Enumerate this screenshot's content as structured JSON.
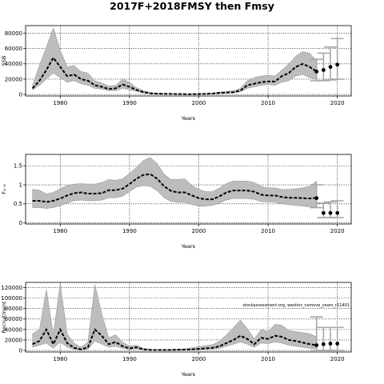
{
  "title": "2017F+2018FMSY then Fmsy",
  "chart_data": [
    {
      "type": "line",
      "xlabel": "Years",
      "ylabel": "SSB",
      "xlim": [
        1975,
        2022
      ],
      "ylim": [
        -2000,
        90000
      ],
      "xticks": [
        1980,
        1990,
        2000,
        2010,
        2020
      ],
      "yticks": [
        0,
        20000,
        40000,
        60000,
        80000
      ],
      "grid": true,
      "series": [
        {
          "role": "estimate",
          "x": [
            1976,
            1977,
            1978,
            1979,
            1980,
            1981,
            1982,
            1983,
            1984,
            1985,
            1986,
            1987,
            1988,
            1989,
            1990,
            1991,
            1992,
            1993,
            1994,
            1995,
            1996,
            1997,
            1998,
            1999,
            2000,
            2001,
            2002,
            2003,
            2004,
            2005,
            2006,
            2007,
            2008,
            2009,
            2010,
            2011,
            2012,
            2013,
            2014,
            2015,
            2016,
            2017
          ],
          "median": [
            8000,
            18000,
            32000,
            48000,
            36000,
            24000,
            26000,
            20000,
            18000,
            12000,
            10000,
            7000,
            8000,
            13000,
            10000,
            6000,
            3000,
            1500,
            1000,
            800,
            700,
            500,
            400,
            400,
            500,
            800,
            1200,
            2000,
            2500,
            3000,
            5000,
            12000,
            14000,
            16000,
            17000,
            17000,
            24000,
            28000,
            36000,
            40000,
            36000,
            30000
          ],
          "low": [
            6000,
            12000,
            20000,
            28000,
            22000,
            16000,
            18000,
            14000,
            12000,
            8000,
            7000,
            5000,
            5000,
            8000,
            6000,
            4000,
            2000,
            1000,
            700,
            500,
            400,
            300,
            300,
            300,
            300,
            500,
            800,
            1300,
            1800,
            2000,
            3500,
            8000,
            10000,
            12000,
            13000,
            12000,
            16000,
            18000,
            24000,
            26000,
            22000,
            20000
          ],
          "high": [
            12000,
            38000,
            62000,
            87000,
            58000,
            36000,
            38000,
            30000,
            28000,
            18000,
            15000,
            11000,
            12000,
            20000,
            16000,
            9000,
            5000,
            2500,
            1600,
            1300,
            1100,
            800,
            700,
            700,
            900,
            1300,
            2000,
            3200,
            4000,
            4800,
            8000,
            18000,
            22000,
            24000,
            25000,
            24000,
            32000,
            40000,
            50000,
            56000,
            54000,
            44000
          ]
        },
        {
          "role": "projection",
          "x": [
            2017,
            2018,
            2019,
            2020
          ],
          "median": [
            30000,
            32000,
            36000,
            39000
          ],
          "low": [
            18000,
            18000,
            19000,
            20000
          ],
          "high": [
            46000,
            54000,
            62000,
            73000
          ]
        }
      ]
    },
    {
      "type": "line",
      "xlabel": "Years",
      "ylabel": "F₄₋₈",
      "xlim": [
        1975,
        2022
      ],
      "ylim": [
        -0.03,
        1.8
      ],
      "xticks": [
        1980,
        1990,
        2000,
        2010,
        2020
      ],
      "yticks": [
        0,
        0.5,
        1,
        1.5
      ],
      "grid": true,
      "series": [
        {
          "role": "estimate",
          "x": [
            1976,
            1977,
            1978,
            1979,
            1980,
            1981,
            1982,
            1983,
            1984,
            1985,
            1986,
            1987,
            1988,
            1989,
            1990,
            1991,
            1992,
            1993,
            1994,
            1995,
            1996,
            1997,
            1998,
            1999,
            2000,
            2001,
            2002,
            2003,
            2004,
            2005,
            2006,
            2007,
            2008,
            2009,
            2010,
            2011,
            2012,
            2013,
            2014,
            2015,
            2016,
            2017
          ],
          "median": [
            0.58,
            0.58,
            0.55,
            0.58,
            0.64,
            0.72,
            0.78,
            0.8,
            0.77,
            0.77,
            0.78,
            0.86,
            0.86,
            0.9,
            1.02,
            1.16,
            1.26,
            1.28,
            1.16,
            0.96,
            0.84,
            0.8,
            0.8,
            0.72,
            0.65,
            0.62,
            0.62,
            0.7,
            0.8,
            0.85,
            0.85,
            0.85,
            0.82,
            0.74,
            0.72,
            0.72,
            0.68,
            0.66,
            0.66,
            0.65,
            0.64,
            0.66
          ],
          "low": [
            0.4,
            0.4,
            0.38,
            0.4,
            0.45,
            0.52,
            0.58,
            0.6,
            0.58,
            0.58,
            0.6,
            0.66,
            0.66,
            0.7,
            0.82,
            0.94,
            0.98,
            0.96,
            0.84,
            0.66,
            0.56,
            0.54,
            0.54,
            0.48,
            0.44,
            0.44,
            0.46,
            0.52,
            0.6,
            0.64,
            0.64,
            0.64,
            0.62,
            0.56,
            0.55,
            0.54,
            0.5,
            0.48,
            0.46,
            0.44,
            0.42,
            0.42
          ],
          "high": [
            0.88,
            0.86,
            0.76,
            0.8,
            0.9,
            0.98,
            1.02,
            1.03,
            1.02,
            1.02,
            1.06,
            1.14,
            1.12,
            1.16,
            1.3,
            1.46,
            1.64,
            1.72,
            1.56,
            1.28,
            1.14,
            1.14,
            1.16,
            0.98,
            0.88,
            0.82,
            0.82,
            0.92,
            1.04,
            1.1,
            1.1,
            1.1,
            1.06,
            0.96,
            0.92,
            0.92,
            0.88,
            0.88,
            0.9,
            0.92,
            0.96,
            1.1
          ]
        },
        {
          "role": "projection",
          "x": [
            2017,
            2018,
            2019,
            2020
          ],
          "median": [
            0.65,
            0.26,
            0.26,
            0.26
          ],
          "low": [
            0.4,
            0.14,
            0.14,
            0.14
          ],
          "high": [
            1.0,
            0.52,
            0.55,
            0.58
          ]
        }
      ]
    },
    {
      "type": "line",
      "xlabel": "Years",
      "ylabel": "Recruitment",
      "xlim": [
        1975,
        2022
      ],
      "ylim": [
        -3000,
        130000
      ],
      "xticks": [
        1980,
        1990,
        2000,
        2010,
        2020
      ],
      "yticks": [
        0,
        20000,
        40000,
        60000,
        80000,
        100000,
        120000
      ],
      "grid": true,
      "annotation": "stockassessment.org, westins_nsmove_years_r11401",
      "series": [
        {
          "role": "estimate",
          "x": [
            1976,
            1977,
            1978,
            1979,
            1980,
            1981,
            1982,
            1983,
            1984,
            1985,
            1986,
            1987,
            1988,
            1989,
            1990,
            1991,
            1992,
            1993,
            1994,
            1995,
            1996,
            1997,
            1998,
            1999,
            2000,
            2001,
            2002,
            2003,
            2004,
            2005,
            2006,
            2007,
            2008,
            2009,
            2010,
            2011,
            2012,
            2013,
            2014,
            2015,
            2016,
            2017
          ],
          "median": [
            12000,
            18000,
            40000,
            12000,
            40000,
            14000,
            5000,
            2000,
            6000,
            40000,
            28000,
            12000,
            16000,
            8000,
            4000,
            6000,
            2000,
            1000,
            800,
            800,
            1000,
            1200,
            1500,
            2000,
            3000,
            4000,
            5000,
            8000,
            14000,
            20000,
            28000,
            22000,
            12000,
            24000,
            22000,
            28000,
            26000,
            20000,
            18000,
            15000,
            12000,
            10000
          ],
          "low": [
            6000,
            10000,
            14000,
            4000,
            16000,
            6000,
            2000,
            800,
            2000,
            18000,
            12000,
            6000,
            8000,
            4000,
            2000,
            3000,
            1000,
            500,
            400,
            400,
            500,
            600,
            800,
            1000,
            1500,
            2000,
            2500,
            4000,
            8000,
            12000,
            16000,
            12000,
            6000,
            14000,
            13000,
            16000,
            14000,
            10000,
            8000,
            6000,
            4000,
            3000
          ],
          "high": [
            32000,
            40000,
            116000,
            30000,
            128000,
            32000,
            14000,
            6000,
            16000,
            126000,
            70000,
            24000,
            30000,
            16000,
            8000,
            10000,
            4000,
            2000,
            1500,
            1600,
            2000,
            2500,
            3000,
            5000,
            7000,
            9000,
            11000,
            18000,
            30000,
            44000,
            58000,
            42000,
            22000,
            40000,
            36000,
            50000,
            48000,
            38000,
            36000,
            34000,
            32000,
            26000
          ]
        },
        {
          "role": "projection",
          "x": [
            2017,
            2018,
            2019,
            2020
          ],
          "median": [
            10000,
            12000,
            13000,
            13000
          ],
          "low": [
            0,
            0,
            0,
            0
          ],
          "high": [
            64000,
            44000,
            44000,
            44000
          ]
        }
      ]
    }
  ]
}
